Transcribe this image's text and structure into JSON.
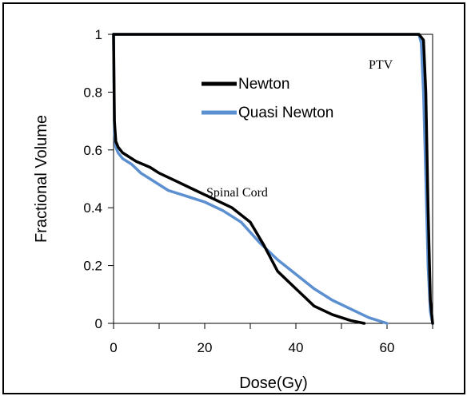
{
  "chart_data": {
    "type": "line",
    "xlabel": "Dose(Gy)",
    "ylabel": "Fractional Volume",
    "xlim": [
      0,
      70
    ],
    "ylim": [
      0,
      1
    ],
    "xticks": [
      "0",
      "20",
      "40",
      "60"
    ],
    "xtick_values": [
      0,
      20,
      40,
      60
    ],
    "yticks": [
      "0",
      "0.2",
      "0.4",
      "0.6",
      "0.8",
      "1"
    ],
    "ytick_values": [
      0,
      0.2,
      0.4,
      0.6,
      0.8,
      1
    ],
    "legend_position": "upper-center",
    "annotations": [
      "PTV",
      "Spinal Cord"
    ],
    "series": [
      {
        "name": "Newton",
        "color": "#000000",
        "group": "spinal-cord",
        "x": [
          0,
          0.2,
          0.5,
          1,
          2,
          3,
          5,
          8,
          10,
          14,
          18,
          22,
          26,
          30,
          33,
          36,
          40,
          44,
          48,
          52,
          55
        ],
        "y": [
          1,
          0.7,
          0.63,
          0.61,
          0.59,
          0.58,
          0.56,
          0.54,
          0.52,
          0.49,
          0.46,
          0.43,
          0.4,
          0.35,
          0.27,
          0.18,
          0.12,
          0.06,
          0.03,
          0.01,
          0.0
        ]
      },
      {
        "name": "Newton",
        "color": "#000000",
        "group": "ptv",
        "x": [
          0,
          67,
          68,
          68.5,
          69,
          69.5,
          70
        ],
        "y": [
          1,
          1,
          0.98,
          0.8,
          0.4,
          0.08,
          0.0
        ]
      },
      {
        "name": "Quasi Newton",
        "color": "#5b8fd0",
        "group": "spinal-cord",
        "x": [
          0,
          0.2,
          0.5,
          1,
          2,
          4,
          6,
          9,
          12,
          16,
          20,
          24,
          28,
          32,
          36,
          40,
          44,
          48,
          52,
          56,
          60
        ],
        "y": [
          1,
          0.66,
          0.61,
          0.59,
          0.57,
          0.55,
          0.52,
          0.49,
          0.46,
          0.44,
          0.42,
          0.39,
          0.35,
          0.28,
          0.22,
          0.17,
          0.12,
          0.08,
          0.05,
          0.02,
          0.0
        ]
      },
      {
        "name": "Quasi Newton",
        "color": "#5b8fd0",
        "group": "ptv",
        "x": [
          0,
          67,
          67.5,
          68,
          68.5,
          69,
          69.5,
          70
        ],
        "y": [
          1,
          1,
          0.97,
          0.8,
          0.5,
          0.2,
          0.04,
          0.0
        ]
      }
    ],
    "legend": [
      {
        "name": "Newton",
        "color": "#000000"
      },
      {
        "name": "Quasi Newton",
        "color": "#5b8fd0"
      }
    ]
  }
}
